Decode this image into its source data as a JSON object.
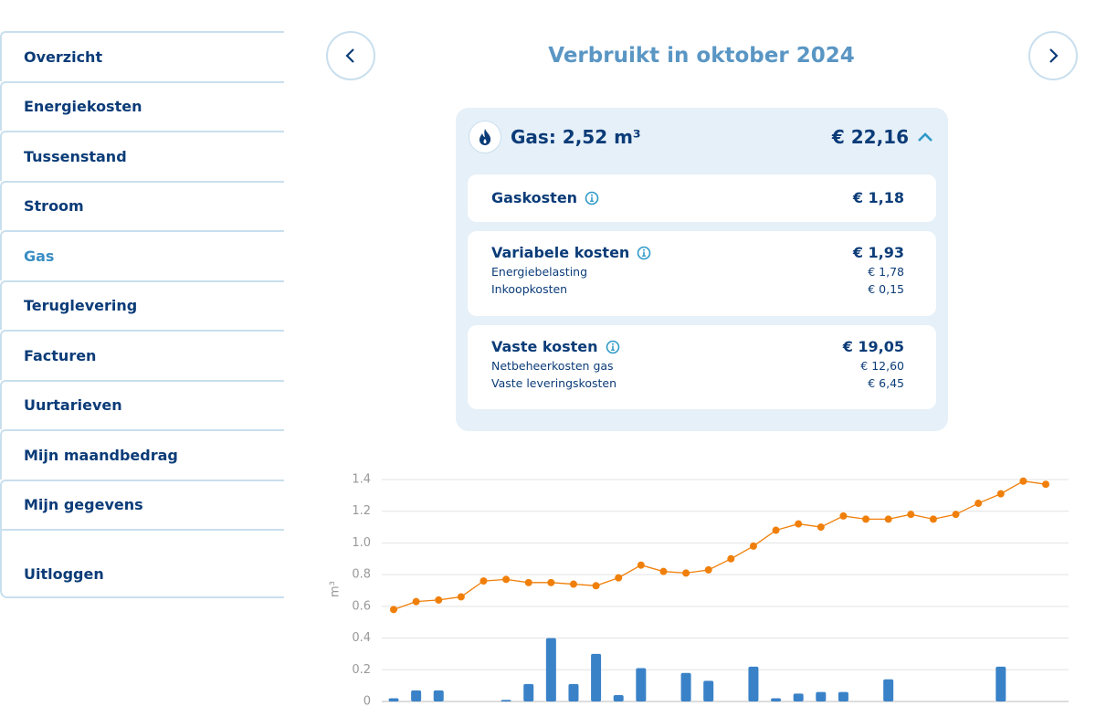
{
  "sidebar": {
    "items": [
      "Overzicht",
      "Energiekosten",
      "Tussenstand",
      "Stroom",
      "Gas",
      "Teruglevering",
      "Facturen",
      "Uurtarieven",
      "Mijn maandbedrag",
      "Mijn gegevens"
    ],
    "active_index": 4,
    "logout": "Uitloggen"
  },
  "header": {
    "title": "Verbruikt in oktober 2024"
  },
  "card": {
    "title": "Gas: 2,52 m³",
    "total": "€ 22,16",
    "sections": [
      {
        "label": "Gaskosten",
        "amount": "€ 1,18"
      },
      {
        "label": "Variabele kosten",
        "amount": "€ 1,93",
        "items": [
          {
            "label": "Energiebelasting",
            "amount": "€ 1,78"
          },
          {
            "label": "Inkoopkosten",
            "amount": "€ 0,15"
          }
        ]
      },
      {
        "label": "Vaste kosten",
        "amount": "€ 19,05",
        "items": [
          {
            "label": "Netbeheerkosten gas",
            "amount": "€ 12,60"
          },
          {
            "label": "Vaste leveringskosten",
            "amount": "€ 6,45"
          }
        ]
      }
    ]
  },
  "chart_data": {
    "type": "bar",
    "ylabel": "m³",
    "ylim": [
      0,
      1.4
    ],
    "yticks": [
      0,
      0.2,
      0.4,
      0.6,
      0.8,
      {
        "value": 1,
        "label": "1.0"
      },
      1.2,
      1.4
    ],
    "grid": true,
    "series": [
      {
        "type": "bar",
        "color": "#3a82c8",
        "values": [
          0.02,
          0.07,
          0.07,
          0,
          0,
          0.01,
          0.11,
          0.4,
          0.11,
          0.3,
          0.04,
          0.21,
          0,
          0.18,
          0.13,
          0,
          0.22,
          0.02,
          0.05,
          0.06,
          0.06,
          0,
          0.14,
          0,
          0,
          0,
          0,
          0.22,
          0,
          0
        ]
      },
      {
        "type": "line",
        "color": "#f07f0a",
        "values": [
          0.58,
          0.63,
          0.64,
          0.66,
          0.76,
          0.77,
          0.75,
          0.75,
          0.74,
          0.73,
          0.78,
          0.86,
          0.82,
          0.81,
          0.83,
          0.9,
          0.98,
          1.08,
          1.12,
          1.1,
          1.17,
          1.15,
          1.15,
          1.18,
          1.15,
          1.18,
          1.25,
          1.31,
          1.39,
          1.37
        ]
      }
    ]
  }
}
